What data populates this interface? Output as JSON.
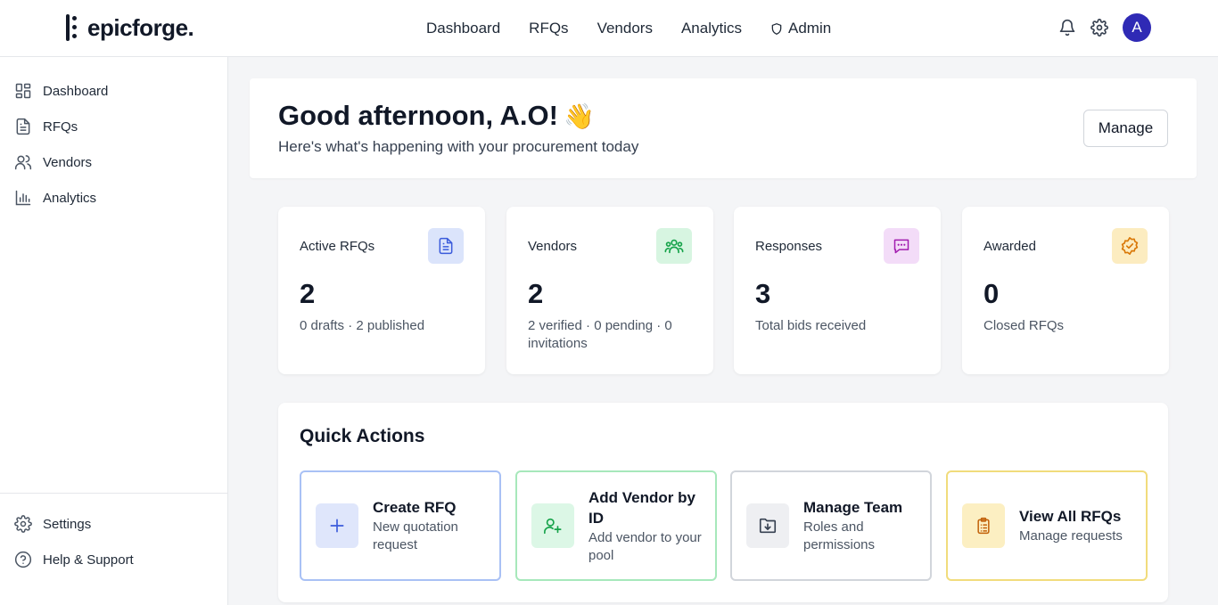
{
  "brand": {
    "name": "epicforge."
  },
  "topnav": {
    "items": [
      "Dashboard",
      "RFQs",
      "Vendors",
      "Analytics"
    ],
    "admin_label": "Admin"
  },
  "user": {
    "avatar_initial": "A"
  },
  "sidebar": {
    "items": [
      {
        "label": "Dashboard",
        "icon": "dashboard-icon"
      },
      {
        "label": "RFQs",
        "icon": "document-icon"
      },
      {
        "label": "Vendors",
        "icon": "users-icon"
      },
      {
        "label": "Analytics",
        "icon": "bar-chart-icon"
      }
    ],
    "bottom": [
      {
        "label": "Settings",
        "icon": "gear-icon"
      },
      {
        "label": "Help & Support",
        "icon": "help-icon"
      }
    ]
  },
  "welcome": {
    "greeting": "Good afternoon, A.O!",
    "emoji": "👋",
    "subtitle": "Here's what's happening with your procurement today",
    "manage_label": "Manage"
  },
  "stats": [
    {
      "label": "Active RFQs",
      "value": "2",
      "sub": "0 drafts · 2 published",
      "icon": "document-icon",
      "color": "#dbe4fb",
      "icon_color": "#3b5bdb"
    },
    {
      "label": "Vendors",
      "value": "2",
      "sub": "2 verified · 0 pending · 0 invitations",
      "icon": "users-icon",
      "color": "#d7f5e1",
      "icon_color": "#16a34a"
    },
    {
      "label": "Responses",
      "value": "3",
      "sub": "Total bids received",
      "icon": "chat-icon",
      "color": "#f3dcf8",
      "icon_color": "#a21caf"
    },
    {
      "label": "Awarded",
      "value": "0",
      "sub": "Closed RFQs",
      "icon": "badge-check-icon",
      "color": "#fcecc0",
      "icon_color": "#d97706"
    }
  ],
  "quick_actions": {
    "title": "Quick Actions",
    "items": [
      {
        "title": "Create RFQ",
        "sub": "New quotation request",
        "icon": "plus-icon",
        "border": "#a9c1f5",
        "bg": "#dfe6fb",
        "icon_color": "#3b5bdb"
      },
      {
        "title": "Add Vendor by ID",
        "sub": "Add vendor to your pool",
        "icon": "user-plus-icon",
        "border": "#a7e8bb",
        "bg": "#dcf7e6",
        "icon_color": "#16a34a"
      },
      {
        "title": "Manage Team",
        "sub": "Roles and permissions",
        "icon": "folder-download-icon",
        "border": "#d1d5db",
        "bg": "#eeeff2",
        "icon_color": "#374151"
      },
      {
        "title": "View All RFQs",
        "sub": "Manage requests",
        "icon": "clipboard-icon",
        "border": "#f1dc7c",
        "bg": "#fcefc2",
        "icon_color": "#c2610a"
      }
    ]
  }
}
